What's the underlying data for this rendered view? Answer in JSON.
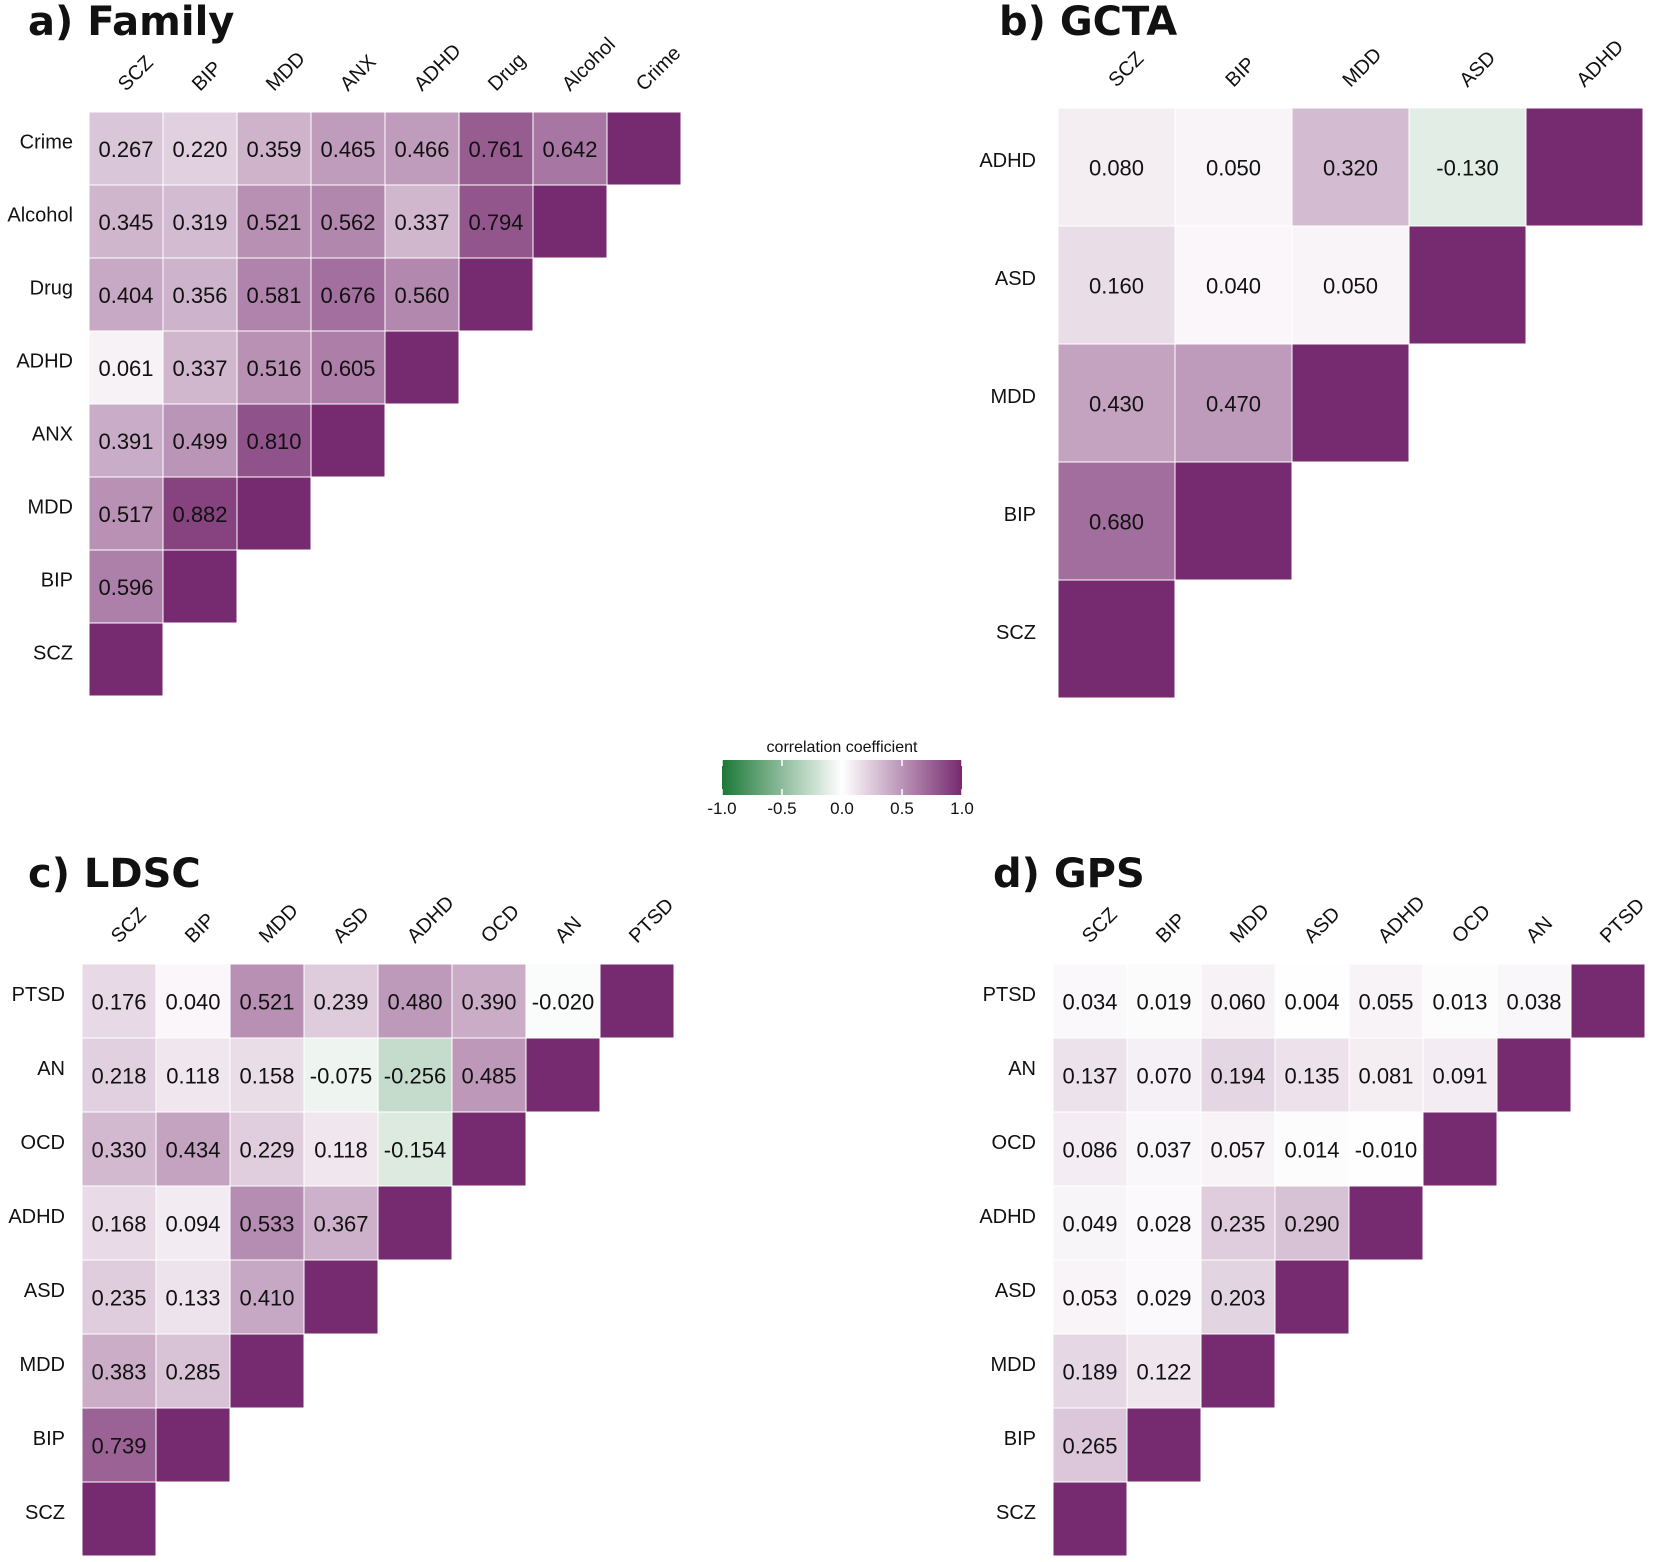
{
  "chart_data": [
    {
      "type": "heatmap",
      "panel_label": "a) Family",
      "title": "Family",
      "columns": [
        "SCZ",
        "BIP",
        "MDD",
        "ANX",
        "ADHD",
        "Drug",
        "Alcohol",
        "Crime"
      ],
      "rows": [
        "Crime",
        "Alcohol",
        "Drug",
        "ADHD",
        "ANX",
        "MDD",
        "BIP",
        "SCZ"
      ],
      "values": [
        [
          "0.267",
          "0.220",
          "0.359",
          "0.465",
          "0.466",
          "0.761",
          "0.642",
          ""
        ],
        [
          "0.345",
          "0.319",
          "0.521",
          "0.562",
          "0.337",
          "0.794",
          "",
          null
        ],
        [
          "0.404",
          "0.356",
          "0.581",
          "0.676",
          "0.560",
          "",
          null,
          null
        ],
        [
          "0.061",
          "0.337",
          "0.516",
          "0.605",
          "",
          null,
          null,
          null
        ],
        [
          "0.391",
          "0.499",
          "0.810",
          "",
          null,
          null,
          null,
          null
        ],
        [
          "0.517",
          "0.882",
          "",
          null,
          null,
          null,
          null,
          null
        ],
        [
          "0.596",
          "",
          null,
          null,
          null,
          null,
          null,
          null
        ],
        [
          "",
          null,
          null,
          null,
          null,
          null,
          null,
          null
        ]
      ]
    },
    {
      "type": "heatmap",
      "panel_label": "b) GCTA",
      "title": "GCTA",
      "columns": [
        "SCZ",
        "BIP",
        "MDD",
        "ASD",
        "ADHD"
      ],
      "rows": [
        "ADHD",
        "ASD",
        "MDD",
        "BIP",
        "SCZ"
      ],
      "values": [
        [
          "0.080",
          "0.050",
          "0.320",
          "-0.130",
          ""
        ],
        [
          "0.160",
          "0.040",
          "0.050",
          "",
          null
        ],
        [
          "0.430",
          "0.470",
          "",
          null,
          null
        ],
        [
          "0.680",
          "",
          null,
          null,
          null
        ],
        [
          "",
          null,
          null,
          null,
          null
        ]
      ]
    },
    {
      "type": "heatmap",
      "panel_label": "c) LDSC",
      "title": "LDSC",
      "columns": [
        "SCZ",
        "BIP",
        "MDD",
        "ASD",
        "ADHD",
        "OCD",
        "AN",
        "PTSD"
      ],
      "rows": [
        "PTSD",
        "AN",
        "OCD",
        "ADHD",
        "ASD",
        "MDD",
        "BIP",
        "SCZ"
      ],
      "values": [
        [
          "0.176",
          "0.040",
          "0.521",
          "0.239",
          "0.480",
          "0.390",
          "-0.020",
          ""
        ],
        [
          "0.218",
          "0.118",
          "0.158",
          "-0.075",
          "-0.256",
          "0.485",
          "",
          null
        ],
        [
          "0.330",
          "0.434",
          "0.229",
          "0.118",
          "-0.154",
          "",
          null,
          null
        ],
        [
          "0.168",
          "0.094",
          "0.533",
          "0.367",
          "",
          null,
          null,
          null
        ],
        [
          "0.235",
          "0.133",
          "0.410",
          "",
          null,
          null,
          null,
          null
        ],
        [
          "0.383",
          "0.285",
          "",
          null,
          null,
          null,
          null,
          null
        ],
        [
          "0.739",
          "",
          null,
          null,
          null,
          null,
          null,
          null
        ],
        [
          "",
          null,
          null,
          null,
          null,
          null,
          null,
          null
        ]
      ]
    },
    {
      "type": "heatmap",
      "panel_label": "d) GPS",
      "title": "GPS",
      "columns": [
        "SCZ",
        "BIP",
        "MDD",
        "ASD",
        "ADHD",
        "OCD",
        "AN",
        "PTSD"
      ],
      "rows": [
        "PTSD",
        "AN",
        "OCD",
        "ADHD",
        "ASD",
        "MDD",
        "BIP",
        "SCZ"
      ],
      "values": [
        [
          "0.034",
          "0.019",
          "0.060",
          "0.004",
          "0.055",
          "0.013",
          "0.038",
          ""
        ],
        [
          "0.137",
          "0.070",
          "0.194",
          "0.135",
          "0.081",
          "0.091",
          "",
          null
        ],
        [
          "0.086",
          "0.037",
          "0.057",
          "0.014",
          "-0.010",
          "",
          null,
          null
        ],
        [
          "0.049",
          "0.028",
          "0.235",
          "0.290",
          "",
          null,
          null,
          null
        ],
        [
          "0.053",
          "0.029",
          "0.203",
          "",
          null,
          null,
          null,
          null
        ],
        [
          "0.189",
          "0.122",
          "",
          null,
          null,
          null,
          null,
          null
        ],
        [
          "0.265",
          "",
          null,
          null,
          null,
          null,
          null,
          null
        ],
        [
          "",
          null,
          null,
          null,
          null,
          null,
          null,
          null
        ]
      ]
    }
  ],
  "legend": {
    "title": "correlation coefficient",
    "ticks": [
      "-1.0",
      "-0.5",
      "0.0",
      "0.5",
      "1.0"
    ],
    "range": [
      -1,
      1
    ],
    "colors": {
      "low": "#1b7837",
      "mid": "#ffffff",
      "high": "#762a6f"
    }
  }
}
